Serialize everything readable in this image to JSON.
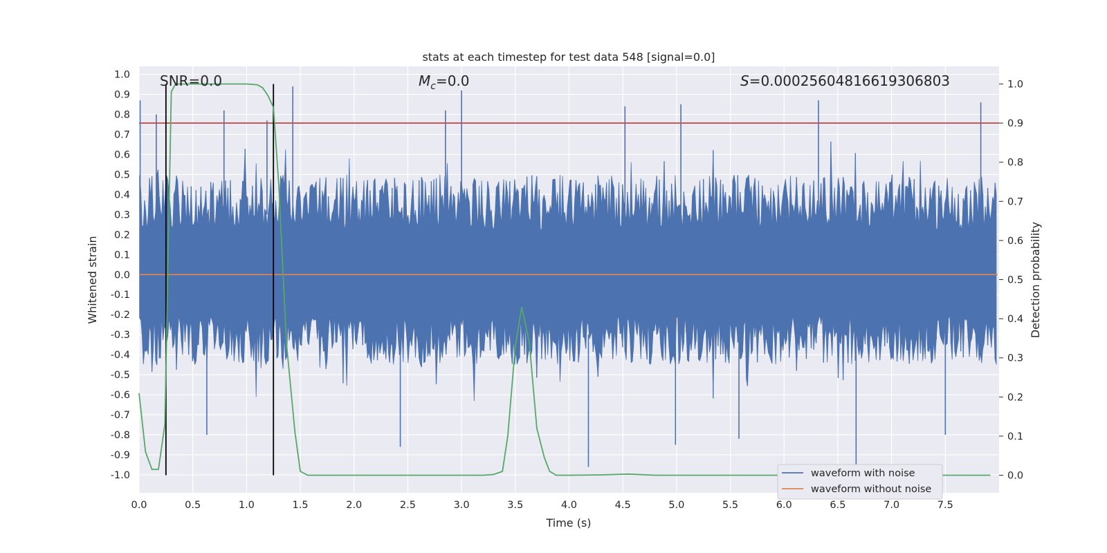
{
  "chart_data": {
    "type": "line",
    "title": "stats at each timestep for test data 548 [signal=0.0]",
    "xlabel": "Time (s)",
    "ylabel": "Whitened strain",
    "y2label": "Detection probability",
    "xlim": [
      0.0,
      8.0
    ],
    "ylim": [
      -1.09,
      1.04
    ],
    "y2lim": [
      -0.045,
      1.045
    ],
    "xticks": [
      "0.0",
      "0.5",
      "1.0",
      "1.5",
      "2.0",
      "2.5",
      "3.0",
      "3.5",
      "4.0",
      "4.5",
      "5.0",
      "5.5",
      "6.0",
      "6.5",
      "7.0",
      "7.5"
    ],
    "yticks": [
      "1.0",
      "0.9",
      "0.8",
      "0.7",
      "0.6",
      "0.5",
      "0.4",
      "0.3",
      "0.2",
      "0.1",
      "0.0",
      "-0.1",
      "-0.2",
      "-0.3",
      "-0.4",
      "-0.5",
      "-0.6",
      "-0.7",
      "-0.8",
      "-0.9",
      "-1.0"
    ],
    "y2ticks": [
      "1.0",
      "0.9",
      "0.8",
      "0.7",
      "0.6",
      "0.5",
      "0.4",
      "0.3",
      "0.2",
      "0.1",
      "0.0"
    ],
    "annotations": {
      "snr": "SNR=0.0",
      "mc_symbol": "M",
      "mc_sub": "c",
      "mc_value": "=0.0",
      "s_symbol": "S",
      "s_value": "=0.00025604816619306803"
    },
    "threshold": {
      "name": "detection threshold",
      "value": 0.9,
      "color": "#c44e52"
    },
    "vlines": [
      0.25,
      1.25
    ],
    "series": [
      {
        "name": "waveform with noise",
        "color": "#4c72b0",
        "envelope_samples": 700,
        "typical_upper": 0.5,
        "typical_lower": -0.45,
        "peak_spikes": [
          {
            "t": 0.01,
            "v": 0.87
          },
          {
            "t": 0.16,
            "v": 0.8
          },
          {
            "t": 0.79,
            "v": 0.82
          },
          {
            "t": 1.19,
            "v": 0.77
          },
          {
            "t": 1.43,
            "v": 0.94
          },
          {
            "t": 2.85,
            "v": 0.82
          },
          {
            "t": 3.0,
            "v": 0.92
          },
          {
            "t": 4.52,
            "v": 0.84
          },
          {
            "t": 5.04,
            "v": 0.85
          },
          {
            "t": 6.32,
            "v": 0.87
          },
          {
            "t": 7.83,
            "v": 0.86
          }
        ],
        "trough_spikes": [
          {
            "t": 0.63,
            "v": -0.8
          },
          {
            "t": 2.43,
            "v": -0.86
          },
          {
            "t": 4.18,
            "v": -0.96
          },
          {
            "t": 4.99,
            "v": -0.85
          },
          {
            "t": 5.58,
            "v": -0.82
          },
          {
            "t": 6.67,
            "v": -1.08
          },
          {
            "t": 7.5,
            "v": -0.8
          }
        ]
      },
      {
        "name": "waveform without noise",
        "color": "#dd8452",
        "x": [
          0.0,
          8.0
        ],
        "values": [
          0.0,
          0.0
        ]
      },
      {
        "name": "detection probability",
        "axis": "right",
        "color": "#55a868",
        "x": [
          0.0,
          0.06,
          0.12,
          0.18,
          0.24,
          0.3,
          0.34,
          0.4,
          0.5,
          0.7,
          0.9,
          1.0,
          1.1,
          1.15,
          1.2,
          1.25,
          1.3,
          1.37,
          1.45,
          1.5,
          1.57,
          1.7,
          2.0,
          2.5,
          3.0,
          3.2,
          3.3,
          3.38,
          3.43,
          3.5,
          3.56,
          3.63,
          3.7,
          3.77,
          3.82,
          3.88,
          4.0,
          4.3,
          4.55,
          4.8,
          5.5,
          6.5,
          7.92
        ],
        "values": [
          0.21,
          0.06,
          0.015,
          0.015,
          0.13,
          0.98,
          1.0,
          1.0,
          1.0,
          1.0,
          1.0,
          1.0,
          0.998,
          0.99,
          0.97,
          0.94,
          0.74,
          0.34,
          0.11,
          0.01,
          0.0,
          0.0,
          0.0,
          0.0,
          0.0,
          0.0,
          0.002,
          0.01,
          0.1,
          0.33,
          0.43,
          0.34,
          0.12,
          0.045,
          0.01,
          0.0,
          0.0,
          0.001,
          0.003,
          0.0,
          0.0,
          0.0,
          0.0
        ]
      }
    ],
    "legend": {
      "position": "lower-right",
      "entries": [
        "waveform with noise",
        "waveform without noise"
      ]
    }
  }
}
